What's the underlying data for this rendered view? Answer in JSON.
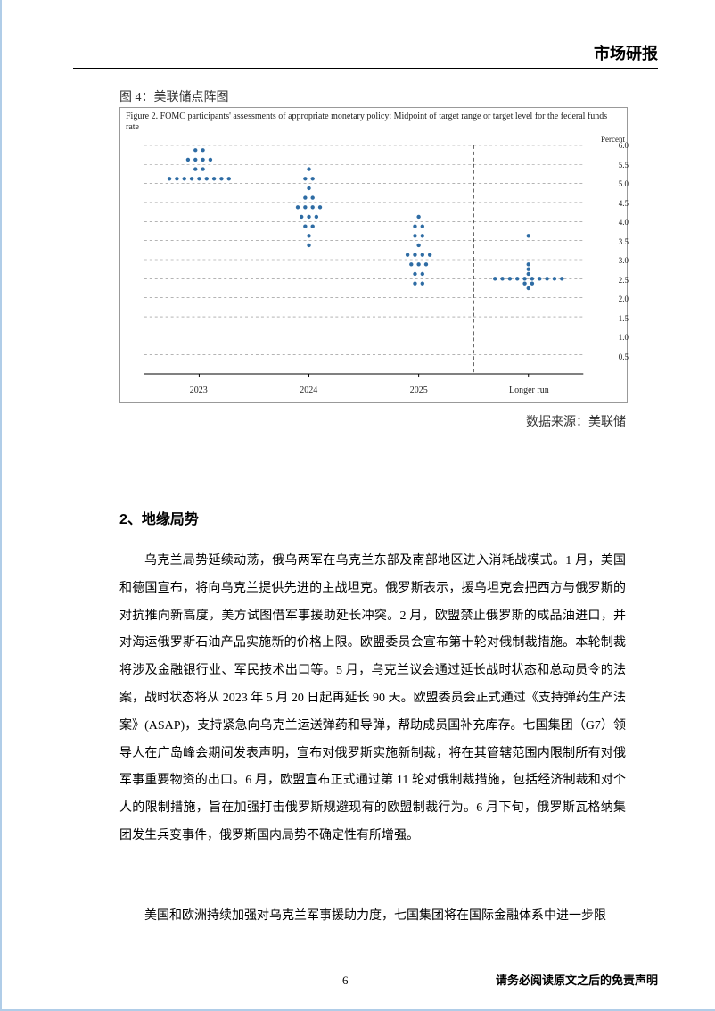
{
  "header": {
    "title": "市场研报"
  },
  "figure": {
    "caption": "图 4：美联储点阵图",
    "inner_title": "Figure 2. FOMC participants' assessments of appropriate monetary policy: Midpoint of target range or target level for the federal funds rate",
    "y_axis_title": "Percent",
    "type": "dot-plot",
    "background_color": "#ffffff",
    "border_color": "#999999",
    "gridline_color": "#888888",
    "dot_color": "#2e6ca4",
    "dot_radius": 2.2,
    "ylim": [
      0,
      6.0
    ],
    "ytick_step": 0.5,
    "yticks": [
      0.5,
      1.0,
      1.5,
      2.0,
      2.5,
      3.0,
      3.5,
      4.0,
      4.5,
      5.0,
      5.5,
      6.0
    ],
    "x_categories": [
      "2023",
      "2024",
      "2025",
      "Longer run"
    ],
    "divider_after_index": 2,
    "dots": {
      "2023": [
        {
          "y": 5.125,
          "n": 9
        },
        {
          "y": 5.375,
          "n": 2
        },
        {
          "y": 5.625,
          "n": 4
        },
        {
          "y": 5.875,
          "n": 2
        }
      ],
      "2024": [
        {
          "y": 3.375,
          "n": 1
        },
        {
          "y": 3.625,
          "n": 1
        },
        {
          "y": 3.875,
          "n": 2
        },
        {
          "y": 4.125,
          "n": 3
        },
        {
          "y": 4.375,
          "n": 4
        },
        {
          "y": 4.625,
          "n": 2
        },
        {
          "y": 4.875,
          "n": 1
        },
        {
          "y": 5.125,
          "n": 2
        },
        {
          "y": 5.375,
          "n": 1
        }
      ],
      "2025": [
        {
          "y": 2.375,
          "n": 2
        },
        {
          "y": 2.625,
          "n": 2
        },
        {
          "y": 2.875,
          "n": 3
        },
        {
          "y": 3.125,
          "n": 4
        },
        {
          "y": 3.375,
          "n": 1
        },
        {
          "y": 3.625,
          "n": 2
        },
        {
          "y": 3.875,
          "n": 2
        },
        {
          "y": 4.125,
          "n": 1
        }
      ],
      "Longer run": [
        {
          "y": 2.25,
          "n": 1
        },
        {
          "y": 2.375,
          "n": 2
        },
        {
          "y": 2.5,
          "n": 10
        },
        {
          "y": 2.625,
          "n": 1
        },
        {
          "y": 2.75,
          "n": 1
        },
        {
          "y": 2.875,
          "n": 1
        },
        {
          "y": 3.625,
          "n": 1
        }
      ]
    },
    "source_label": "数据来源：美联储"
  },
  "section": {
    "heading": "2、地缘局势",
    "paragraph1": "乌克兰局势延续动荡，俄乌两军在乌克兰东部及南部地区进入消耗战模式。1 月，美国和德国宣布，将向乌克兰提供先进的主战坦克。俄罗斯表示，援乌坦克会把西方与俄罗斯的对抗推向新高度，美方试图借军事援助延长冲突。2 月，欧盟禁止俄罗斯的成品油进口，并对海运俄罗斯石油产品实施新的价格上限。欧盟委员会宣布第十轮对俄制裁措施。本轮制裁将涉及金融银行业、军民技术出口等。5 月，乌克兰议会通过延长战时状态和总动员令的法案，战时状态将从 2023 年 5 月 20 日起再延长 90 天。欧盟委员会正式通过《支持弹药生产法案》(ASAP)，支持紧急向乌克兰运送弹药和导弹，帮助成员国补充库存。七国集团（G7）领导人在广岛峰会期间发表声明，宣布对俄罗斯实施新制裁，将在其管辖范围内限制所有对俄军事重要物资的出口。6 月，欧盟宣布正式通过第 11 轮对俄制裁措施，包括经济制裁和对个人的限制措施，旨在加强打击俄罗斯规避现有的欧盟制裁行为。6 月下旬，俄罗斯瓦格纳集团发生兵变事件，俄罗斯国内局势不确定性有所增强。",
    "paragraph2": "美国和欧洲持续加强对乌克兰军事援助力度，七国集团将在国际金融体系中进一步限"
  },
  "footer": {
    "page_number": "6",
    "disclaimer": "请务必阅读原文之后的免责声明"
  },
  "colors": {
    "page_border": "#b0cde8",
    "text": "#000000"
  }
}
